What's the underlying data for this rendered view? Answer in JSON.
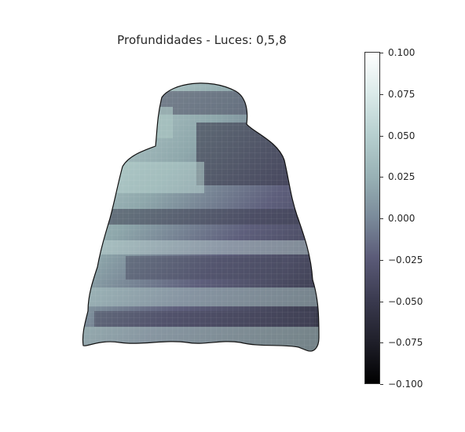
{
  "chart_data": {
    "type": "heatmap",
    "title": "Profundidades - Luces: 0,5,8",
    "xlabel": "",
    "ylabel": "",
    "colorbar": {
      "range": [
        -0.1,
        0.1
      ],
      "ticks": [
        "0.100",
        "0.075",
        "0.050",
        "0.025",
        "0.000",
        "−0.025",
        "−0.050",
        "−0.075",
        "−0.100"
      ],
      "colormap": "bone",
      "colors": [
        "#000000",
        "#3a3a4f",
        "#7a8a9a",
        "#b6cfcf",
        "#ffffff"
      ]
    },
    "surface": "3D depth surface rendered in bone colormap",
    "grid": false,
    "legend": "colorbar-right"
  }
}
